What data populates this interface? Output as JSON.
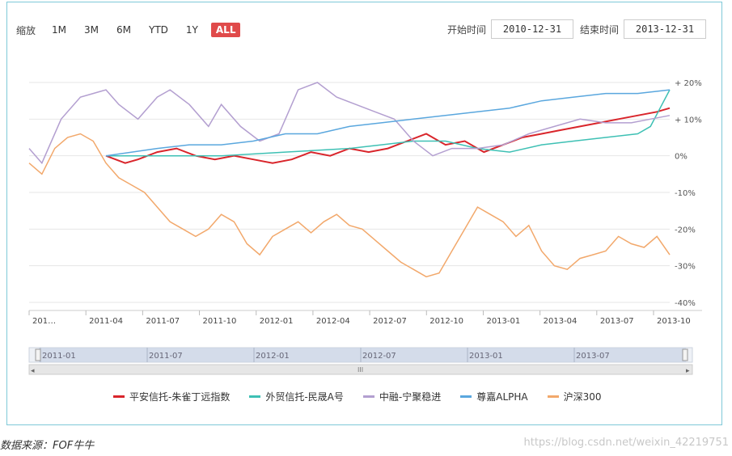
{
  "zoom": {
    "label": "缩放",
    "buttons": [
      "1M",
      "3M",
      "6M",
      "YTD",
      "1Y",
      "ALL"
    ],
    "active": "ALL"
  },
  "range": {
    "start_label": "开始时间",
    "start_value": "2010-12-31",
    "end_label": "结束时间",
    "end_value": "2013-12-31"
  },
  "navigator": {
    "labels": [
      "2011-01",
      "2011-07",
      "2012-01",
      "2012-07",
      "2013-01",
      "2013-07"
    ],
    "scroll_grip": "III",
    "left_arrow": "◂",
    "right_arrow": "▸"
  },
  "colors": {
    "accent": "#e04a4a",
    "frame": "#7fc9d8"
  },
  "chart_data": {
    "type": "line",
    "x_tick_labels": [
      "201…",
      "2011-04",
      "2011-07",
      "2011-10",
      "2012-01",
      "2012-04",
      "2012-07",
      "2012-10",
      "2013-01",
      "2013-04",
      "2013-07",
      "2013-10"
    ],
    "y_tick_labels": [
      "+ 20%",
      "+ 10%",
      "0%",
      "-10%",
      "-20%",
      "-30%",
      "-40%"
    ],
    "ylim": [
      -40,
      20
    ],
    "grid": true,
    "legend_position": "bottom",
    "series": [
      {
        "name": "平安信托-朱雀丁远指数",
        "color": "#d9252b",
        "x": [
          0.12,
          0.15,
          0.17,
          0.2,
          0.23,
          0.26,
          0.29,
          0.32,
          0.35,
          0.38,
          0.41,
          0.44,
          0.47,
          0.5,
          0.53,
          0.56,
          0.59,
          0.62,
          0.65,
          0.68,
          0.71,
          0.74,
          0.77,
          0.8,
          0.83,
          0.86,
          0.89,
          0.92,
          0.95,
          0.98,
          1.0
        ],
        "values": [
          0,
          -2,
          -1,
          1,
          2,
          0,
          -1,
          0,
          -1,
          -2,
          -1,
          1,
          0,
          2,
          1,
          2,
          4,
          6,
          3,
          4,
          1,
          3,
          5,
          6,
          7,
          8,
          9,
          10,
          11,
          12,
          13
        ]
      },
      {
        "name": "外贸信托-民晟A号",
        "color": "#3ec0b4",
        "x": [
          0.12,
          0.2,
          0.3,
          0.4,
          0.5,
          0.55,
          0.6,
          0.65,
          0.7,
          0.75,
          0.8,
          0.85,
          0.9,
          0.95,
          0.97,
          1.0
        ],
        "values": [
          0,
          0,
          0,
          1,
          2,
          3,
          4,
          4,
          2,
          1,
          3,
          4,
          5,
          6,
          8,
          18
        ]
      },
      {
        "name": "中融-宁聚稳进",
        "color": "#b39fd0",
        "x": [
          0.0,
          0.02,
          0.05,
          0.08,
          0.1,
          0.12,
          0.14,
          0.17,
          0.2,
          0.22,
          0.25,
          0.28,
          0.3,
          0.33,
          0.36,
          0.39,
          0.42,
          0.45,
          0.48,
          0.51,
          0.54,
          0.57,
          0.6,
          0.63,
          0.66,
          0.7,
          0.74,
          0.78,
          0.82,
          0.86,
          0.9,
          0.94,
          0.97,
          1.0
        ],
        "values": [
          2,
          -2,
          10,
          16,
          17,
          18,
          14,
          10,
          16,
          18,
          14,
          8,
          14,
          8,
          4,
          6,
          18,
          20,
          16,
          14,
          12,
          10,
          4,
          0,
          2,
          2,
          3,
          6,
          8,
          10,
          9,
          9,
          10,
          11
        ]
      },
      {
        "name": "尊嘉ALPHA",
        "color": "#5aa7de",
        "x": [
          0.12,
          0.2,
          0.25,
          0.3,
          0.35,
          0.4,
          0.45,
          0.5,
          0.55,
          0.6,
          0.65,
          0.7,
          0.75,
          0.8,
          0.85,
          0.9,
          0.95,
          1.0
        ],
        "values": [
          0,
          2,
          3,
          3,
          4,
          6,
          6,
          8,
          9,
          10,
          11,
          12,
          13,
          15,
          16,
          17,
          17,
          18
        ]
      },
      {
        "name": "沪深300",
        "color": "#f2a86b",
        "x": [
          0.0,
          0.02,
          0.04,
          0.06,
          0.08,
          0.1,
          0.12,
          0.14,
          0.16,
          0.18,
          0.2,
          0.22,
          0.24,
          0.26,
          0.28,
          0.3,
          0.32,
          0.34,
          0.36,
          0.38,
          0.4,
          0.42,
          0.44,
          0.46,
          0.48,
          0.5,
          0.52,
          0.54,
          0.56,
          0.58,
          0.6,
          0.62,
          0.64,
          0.66,
          0.68,
          0.7,
          0.72,
          0.74,
          0.76,
          0.78,
          0.8,
          0.82,
          0.84,
          0.86,
          0.88,
          0.9,
          0.92,
          0.94,
          0.96,
          0.98,
          1.0
        ],
        "values": [
          -2,
          -5,
          2,
          5,
          6,
          4,
          -2,
          -6,
          -8,
          -10,
          -14,
          -18,
          -20,
          -22,
          -20,
          -16,
          -18,
          -24,
          -27,
          -22,
          -20,
          -18,
          -21,
          -18,
          -16,
          -19,
          -20,
          -23,
          -26,
          -29,
          -31,
          -33,
          -32,
          -26,
          -20,
          -14,
          -16,
          -18,
          -22,
          -19,
          -26,
          -30,
          -31,
          -28,
          -27,
          -26,
          -22,
          -24,
          -25,
          -22,
          -27
        ]
      }
    ]
  },
  "legend": [
    {
      "label": "平安信托-朱雀丁远指数",
      "color": "#d9252b"
    },
    {
      "label": "外贸信托-民晟A号",
      "color": "#3ec0b4"
    },
    {
      "label": "中融-宁聚稳进",
      "color": "#b39fd0"
    },
    {
      "label": "尊嘉ALPHA",
      "color": "#5aa7de"
    },
    {
      "label": "沪深300",
      "color": "#f2a86b"
    }
  ],
  "footer": {
    "source": "数据来源：FOF牛牛",
    "watermark": "https://blog.csdn.net/weixin_42219751"
  }
}
